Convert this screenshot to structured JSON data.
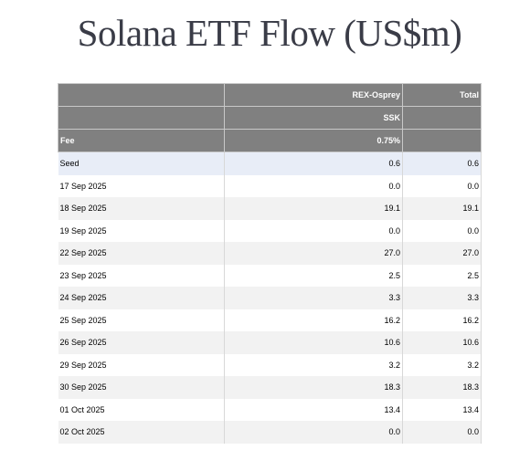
{
  "title": "Solana ETF Flow (US$m)",
  "header": {
    "issuer_row": {
      "label": "",
      "issuer": "REX-Osprey",
      "total": "Total"
    },
    "ticker_row": {
      "label": "",
      "ticker": "SSK",
      "total": ""
    },
    "fee_row": {
      "label": "Fee",
      "fee": "0.75%",
      "total": ""
    }
  },
  "rows": [
    {
      "date": "Seed",
      "ssk": "0.6",
      "total": "0.6"
    },
    {
      "date": "17 Sep 2025",
      "ssk": "0.0",
      "total": "0.0"
    },
    {
      "date": "18 Sep 2025",
      "ssk": "19.1",
      "total": "19.1"
    },
    {
      "date": "19 Sep 2025",
      "ssk": "0.0",
      "total": "0.0"
    },
    {
      "date": "22 Sep 2025",
      "ssk": "27.0",
      "total": "27.0"
    },
    {
      "date": "23 Sep 2025",
      "ssk": "2.5",
      "total": "2.5"
    },
    {
      "date": "24 Sep 2025",
      "ssk": "3.3",
      "total": "3.3"
    },
    {
      "date": "25 Sep 2025",
      "ssk": "16.2",
      "total": "16.2"
    },
    {
      "date": "26 Sep 2025",
      "ssk": "10.6",
      "total": "10.6"
    },
    {
      "date": "29 Sep 2025",
      "ssk": "3.2",
      "total": "3.2"
    },
    {
      "date": "30 Sep 2025",
      "ssk": "18.3",
      "total": "18.3"
    },
    {
      "date": "01 Oct 2025",
      "ssk": "13.4",
      "total": "13.4"
    },
    {
      "date": "02 Oct 2025",
      "ssk": "0.0",
      "total": "0.0"
    }
  ]
}
